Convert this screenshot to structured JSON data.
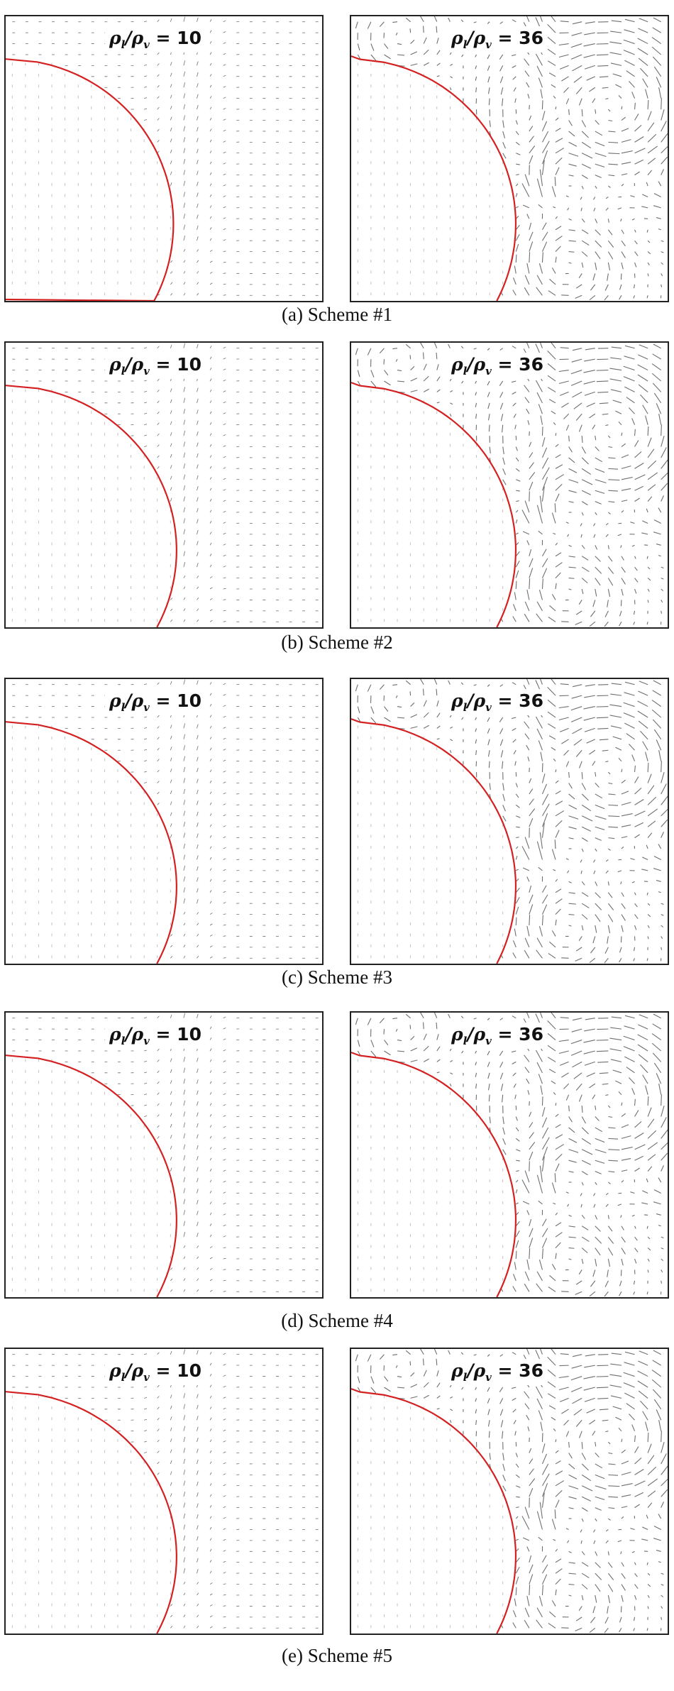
{
  "figure": {
    "rows": [
      {
        "caption": "(a) Scheme #1",
        "left_label": {
          "num": "ρ",
          "sub1": "l",
          "slash": "/ρ",
          "sub2": "v",
          "value": " = 10"
        },
        "right_label": {
          "num": "ρ",
          "sub1": "l",
          "slash": "/ρ",
          "sub2": "v",
          "value": " = 36"
        }
      },
      {
        "caption": "(b) Scheme #2",
        "left_label": {
          "num": "ρ",
          "sub1": "l",
          "slash": "/ρ",
          "sub2": "v",
          "value": " = 10"
        },
        "right_label": {
          "num": "ρ",
          "sub1": "l",
          "slash": "/ρ",
          "sub2": "v",
          "value": " = 36"
        }
      },
      {
        "caption": "(c) Scheme #3",
        "left_label": {
          "num": "ρ",
          "sub1": "l",
          "slash": "/ρ",
          "sub2": "v",
          "value": " = 10"
        },
        "right_label": {
          "num": "ρ",
          "sub1": "l",
          "slash": "/ρ",
          "sub2": "v",
          "value": " = 36"
        }
      },
      {
        "caption": "(d) Scheme #4",
        "left_label": {
          "num": "ρ",
          "sub1": "l",
          "slash": "/ρ",
          "sub2": "v",
          "value": " = 10"
        },
        "right_label": {
          "num": "ρ",
          "sub1": "l",
          "slash": "/ρ",
          "sub2": "v",
          "value": " = 36"
        }
      },
      {
        "caption": "(e) Scheme #5",
        "left_label": {
          "num": "ρ",
          "sub1": "l",
          "slash": "/ρ",
          "sub2": "v",
          "value": " = 10"
        },
        "right_label": {
          "num": "ρ",
          "sub1": "l",
          "slash": "/ρ",
          "sub2": "v",
          "value": " = 36"
        }
      }
    ],
    "colors": {
      "interface": "#d42020",
      "vectors": "#555555"
    }
  }
}
